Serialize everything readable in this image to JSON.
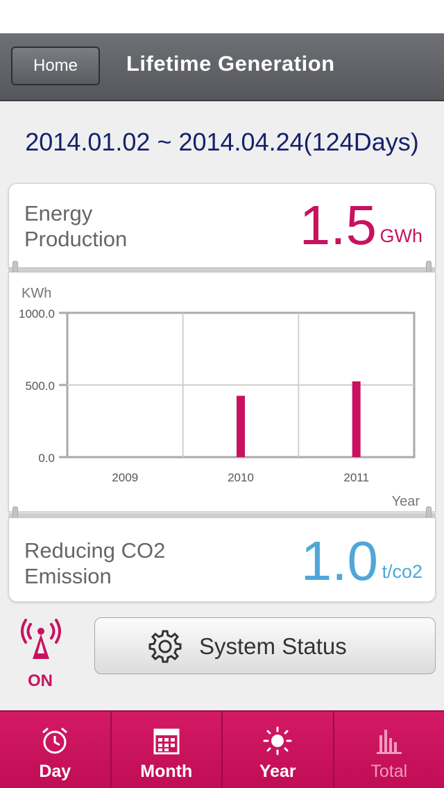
{
  "nav": {
    "home_label": "Home",
    "title": "Lifetime Generation"
  },
  "date_range": "2014.01.02 ~ 2014.04.24(124Days)",
  "energy": {
    "label_line1": "Energy",
    "label_line2": "Production",
    "value": "1.5",
    "unit": "GWh"
  },
  "co2": {
    "label_line1": "Reducing CO2",
    "label_line2": "Emission",
    "value": "1.0",
    "unit": "t/co2"
  },
  "chart_data": {
    "type": "bar",
    "categories": [
      "2009",
      "2010",
      "2011"
    ],
    "values": [
      0,
      425,
      525
    ],
    "ylabel": "KWh",
    "xlabel": "Year",
    "ylim": [
      0,
      1000
    ],
    "yticks": [
      "1000.0",
      "500.0",
      "0.0"
    ],
    "grid": true,
    "bar_color": "#c8125f"
  },
  "connection": {
    "status": "ON",
    "icon": "signal-tower-icon"
  },
  "system_status_label": "System Status",
  "tabs": [
    {
      "label": "Day",
      "icon": "alarm-clock-icon"
    },
    {
      "label": "Month",
      "icon": "calendar-icon"
    },
    {
      "label": "Year",
      "icon": "sun-icon"
    },
    {
      "label": "Total",
      "icon": "bar-chart-icon"
    }
  ],
  "colors": {
    "accent": "#c8125f",
    "co2": "#4fa7d8",
    "date": "#15226b",
    "nav": "#5e6065"
  }
}
